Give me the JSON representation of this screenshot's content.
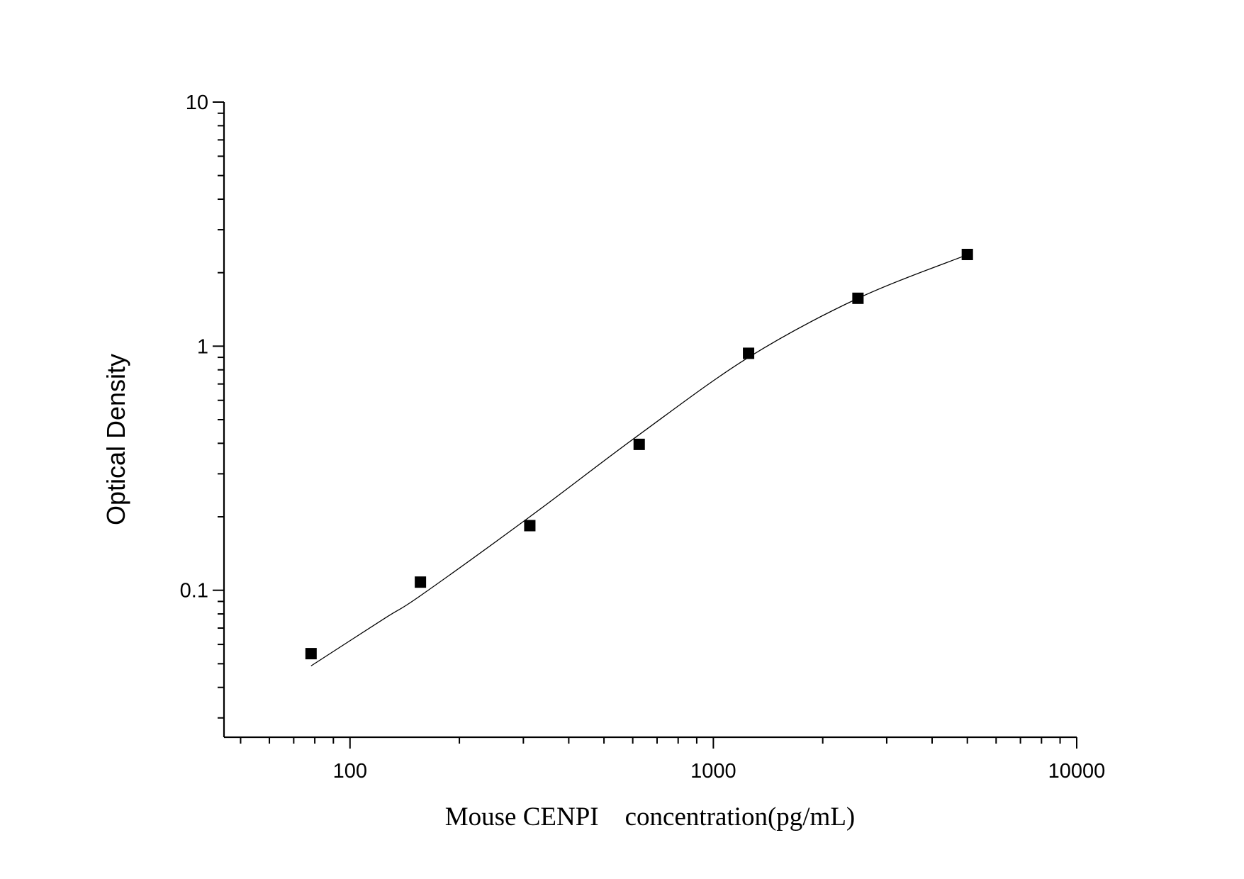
{
  "chart_data": {
    "type": "scatter",
    "title": "",
    "xlabel": "Mouse CENPI    concentration(pg/mL)",
    "ylabel": "Optical Density",
    "x_scale": "log",
    "y_scale": "log",
    "xlim": [
      45,
      10000
    ],
    "ylim": [
      0.025,
      10
    ],
    "x_ticks": [
      100,
      1000,
      10000
    ],
    "x_tick_labels": [
      "100",
      "1000",
      "10000"
    ],
    "y_ticks": [
      0.1,
      1,
      10
    ],
    "y_tick_labels": [
      "0.1",
      "1",
      "10"
    ],
    "grid": false,
    "legend": "none",
    "series": [
      {
        "marker": "square",
        "color": "#000000",
        "x": [
          78.125,
          156.25,
          312.5,
          625,
          1250,
          2500,
          5000
        ],
        "y": [
          0.055,
          0.108,
          0.184,
          0.396,
          0.935,
          1.571,
          2.375
        ]
      }
    ],
    "fit_curve": {
      "color": "#000000",
      "x": [
        78.125,
        125,
        156.25,
        312.5,
        625,
        1250,
        2500,
        5000
      ],
      "y": [
        0.049,
        0.077,
        0.095,
        0.2,
        0.434,
        0.9,
        1.57,
        2.37
      ]
    }
  }
}
